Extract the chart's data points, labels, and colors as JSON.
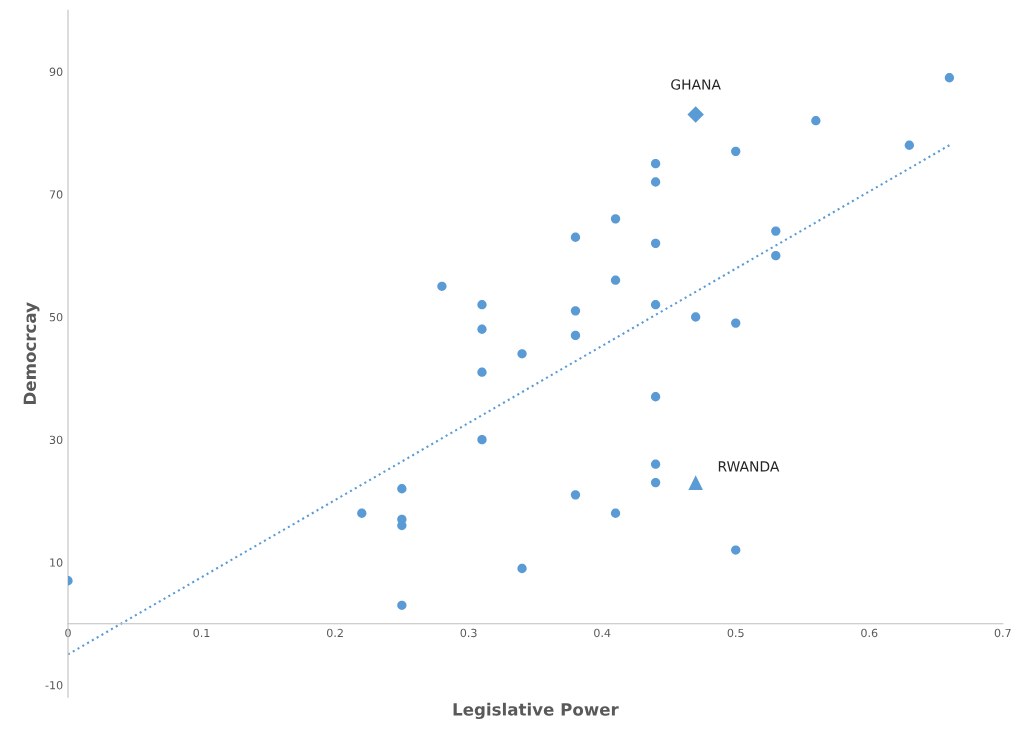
{
  "chart_data": {
    "type": "scatter",
    "xlabel": "Legislative Power",
    "ylabel": "Democrcay",
    "xlim": [
      0,
      0.7
    ],
    "xticks": [
      0,
      0.1,
      0.2,
      0.3,
      0.4,
      0.5,
      0.6,
      0.7
    ],
    "ylim": [
      -12,
      100
    ],
    "yticks": [
      -10,
      10,
      30,
      50,
      70,
      90
    ],
    "grid": false,
    "series": [
      {
        "marker": "circle",
        "color": "#5b9bd5",
        "x": [
          0,
          0.22,
          0.25,
          0.25,
          0.25,
          0.25,
          0.28,
          0.31,
          0.31,
          0.31,
          0.31,
          0.34,
          0.34,
          0.38,
          0.38,
          0.38,
          0.38,
          0.41,
          0.41,
          0.41,
          0.44,
          0.44,
          0.44,
          0.44,
          0.44,
          0.44,
          0.44,
          0.47,
          0.5,
          0.5,
          0.5,
          0.53,
          0.53,
          0.56,
          0.63,
          0.66
        ],
        "values": [
          7,
          18,
          22,
          17,
          16,
          3,
          55,
          52,
          48,
          41,
          30,
          44,
          9,
          63,
          51,
          47,
          21,
          66,
          56,
          18,
          75,
          72,
          62,
          52,
          37,
          26,
          23,
          50,
          77,
          49,
          12,
          64,
          60,
          82,
          78,
          89
        ]
      },
      {
        "marker": "diamond",
        "color": "#5b9bd5",
        "x": [
          0.47
        ],
        "values": [
          83
        ]
      },
      {
        "marker": "triangle",
        "color": "#5b9bd5",
        "x": [
          0.47
        ],
        "values": [
          23
        ]
      },
      {
        "type": "line",
        "line_style": "dotted",
        "color": "#5b9bd5",
        "x": [
          0,
          0.66
        ],
        "values": [
          -5,
          78
        ]
      }
    ],
    "annotations": [
      {
        "text": "GHANA",
        "x": 0.47,
        "y": 83
      },
      {
        "text": "RWANDA",
        "x": 0.47,
        "y": 23
      }
    ]
  }
}
